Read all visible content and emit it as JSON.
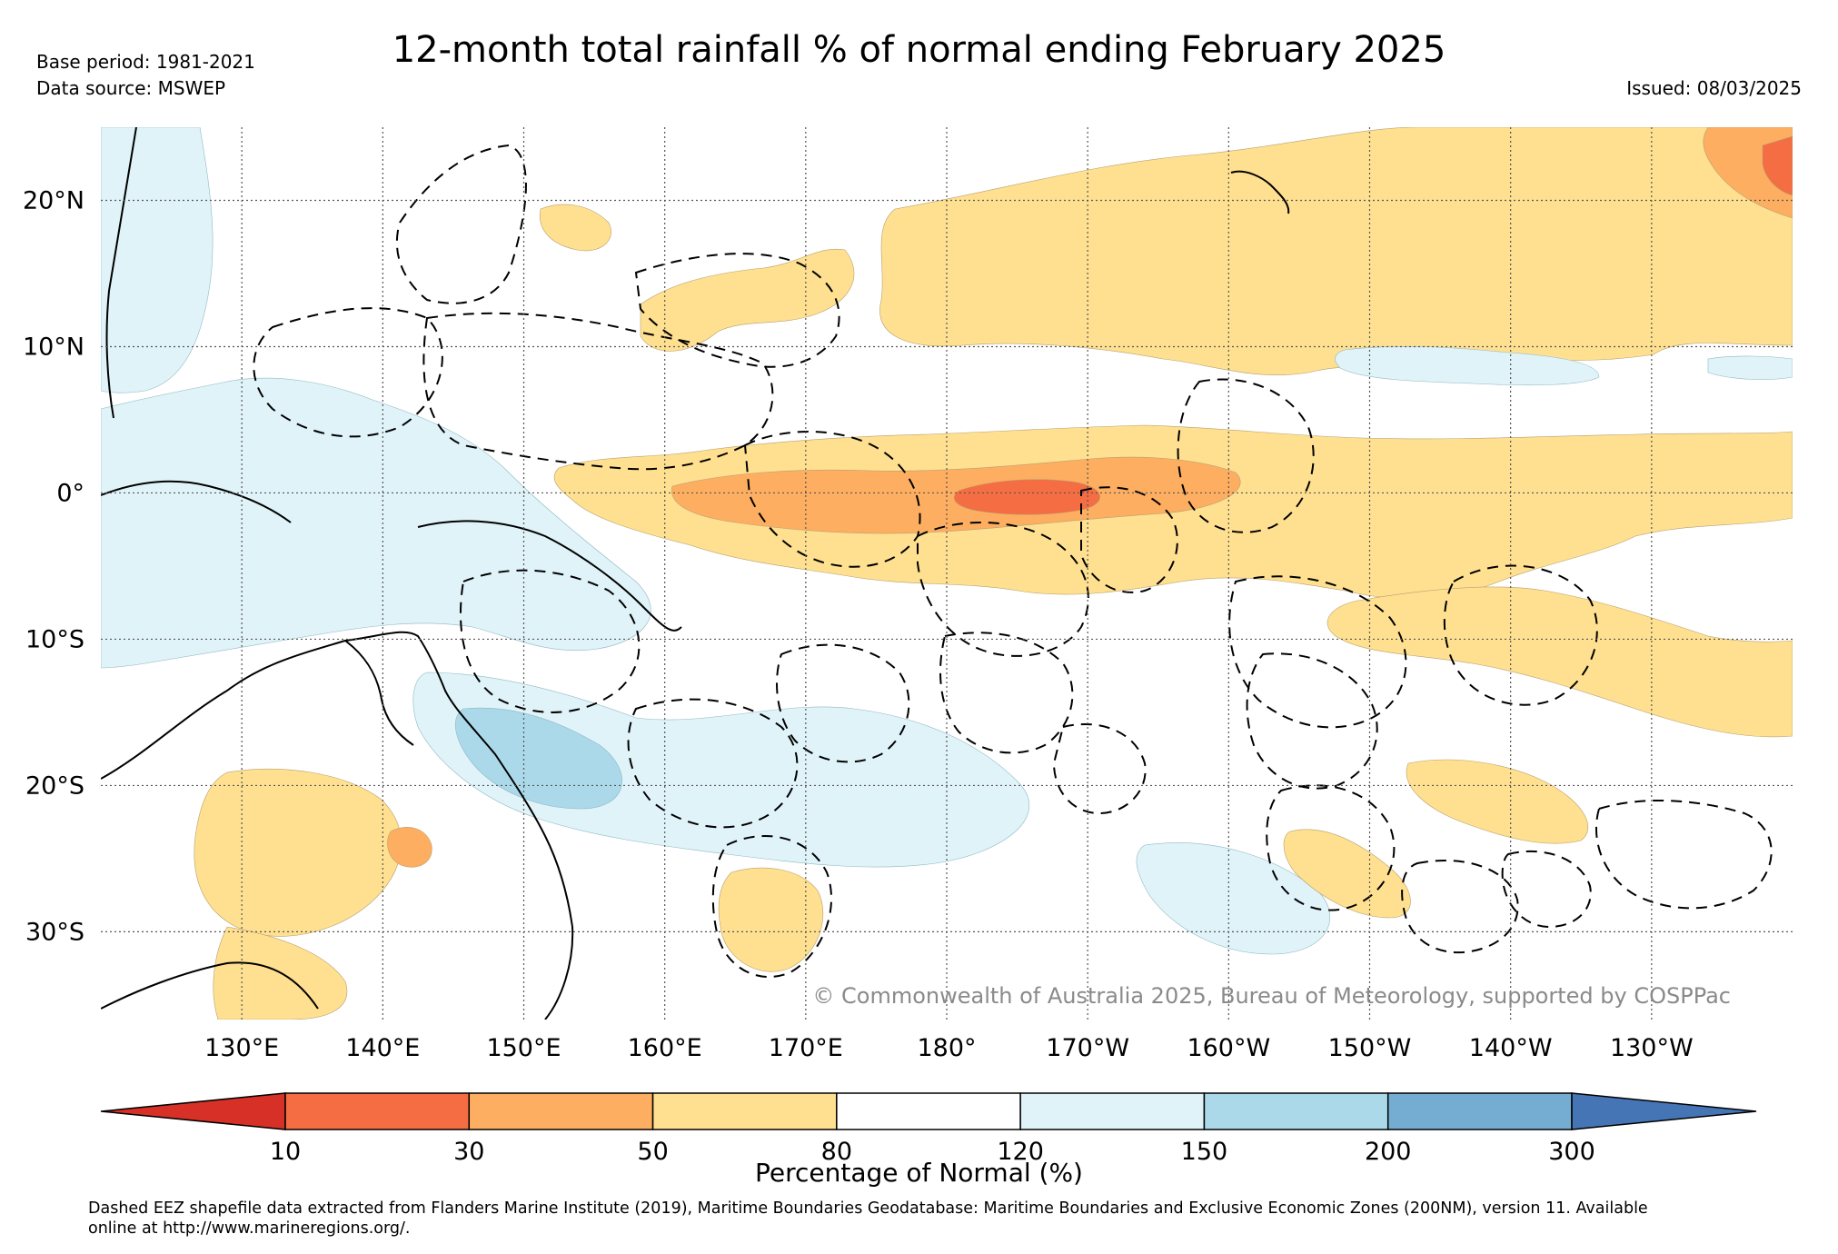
{
  "title": "12-month total rainfall % of normal ending February 2025",
  "base_period": "Base period: 1981-2021",
  "data_source": "Data source: MSWEP",
  "issued": "Issued: 08/03/2025",
  "copyright": "© Commonwealth of Australia 2025, Bureau of Meteorology, supported by COSPPac",
  "footnote_line1": "Dashed EEZ shapefile data extracted from Flanders Marine Institute (2019), Maritime Boundaries Geodatabase: Maritime Boundaries and Exclusive Economic Zones (200NM), version 11. Available",
  "footnote_line2": "online at http://www.marineregions.org/.",
  "map": {
    "lon_range": [
      120,
      240
    ],
    "lat_range": [
      -36,
      25
    ],
    "lat_ticks": [
      {
        "value": 20,
        "label": "20°N"
      },
      {
        "value": 10,
        "label": "10°N"
      },
      {
        "value": 0,
        "label": "0°"
      },
      {
        "value": -10,
        "label": "10°S"
      },
      {
        "value": -20,
        "label": "20°S"
      },
      {
        "value": -30,
        "label": "30°S"
      }
    ],
    "lon_ticks": [
      {
        "value": 130,
        "label": "130°E"
      },
      {
        "value": 140,
        "label": "140°E"
      },
      {
        "value": 150,
        "label": "150°E"
      },
      {
        "value": 160,
        "label": "160°E"
      },
      {
        "value": 170,
        "label": "170°E"
      },
      {
        "value": 180,
        "label": "180°"
      },
      {
        "value": 190,
        "label": "170°W"
      },
      {
        "value": 200,
        "label": "160°W"
      },
      {
        "value": 210,
        "label": "150°W"
      },
      {
        "value": 220,
        "label": "140°W"
      },
      {
        "value": 230,
        "label": "130°W"
      }
    ],
    "gridlines": true
  },
  "colorbar": {
    "title": "Percentage of Normal (%)",
    "tick_labels": [
      "10",
      "30",
      "50",
      "80",
      "120",
      "150",
      "200",
      "300"
    ],
    "bins": [
      {
        "range": "<10",
        "color": "#d73027"
      },
      {
        "range": "10-30",
        "color": "#f46d43"
      },
      {
        "range": "30-50",
        "color": "#fdae61"
      },
      {
        "range": "50-80",
        "color": "#fee090"
      },
      {
        "range": "80-120",
        "color": "#ffffff"
      },
      {
        "range": "120-150",
        "color": "#e0f3f8"
      },
      {
        "range": "150-200",
        "color": "#abd9e9"
      },
      {
        "range": "200-300",
        "color": "#74add1"
      },
      {
        "range": ">300",
        "color": "#4575b4"
      }
    ]
  }
}
